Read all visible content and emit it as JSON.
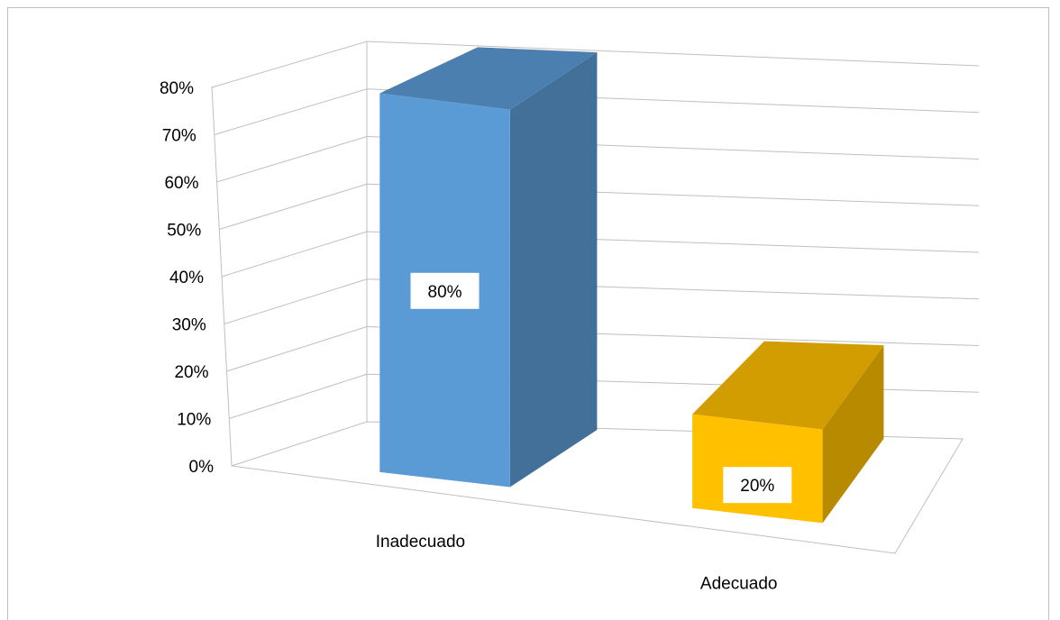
{
  "chart_data": {
    "type": "bar",
    "categories": [
      "Inadecuado",
      "Adecuado"
    ],
    "values": [
      80,
      20
    ],
    "data_labels": [
      "80%",
      "20%"
    ],
    "ylim": [
      0,
      80
    ],
    "yticks": [
      "0%",
      "10%",
      "20%",
      "30%",
      "40%",
      "50%",
      "60%",
      "70%",
      "80%"
    ],
    "ytick_values": [
      0,
      10,
      20,
      30,
      40,
      50,
      60,
      70,
      80
    ],
    "grid": true,
    "colors": [
      "#5B9BD5",
      "#FFC000"
    ],
    "title": "",
    "xlabel": "",
    "ylabel": ""
  }
}
